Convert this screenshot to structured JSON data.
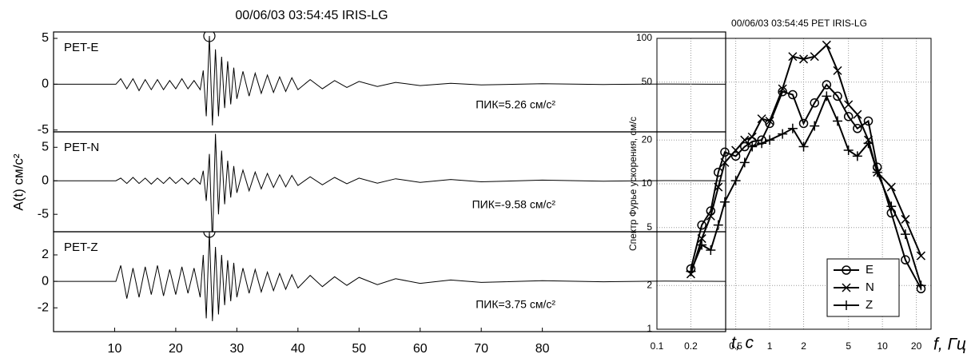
{
  "chart_data": [
    {
      "type": "seismogram",
      "title": "00/06/03 03:54:45  IRIS-LG",
      "y_label": "A(t) см/с²",
      "x_label": "t, с",
      "xlim": [
        0,
        110
      ],
      "xticks": [
        10,
        20,
        30,
        40,
        50,
        60,
        70,
        80
      ],
      "x": [
        0,
        10.2,
        11,
        12,
        13,
        14,
        15,
        16,
        17,
        18,
        19,
        20,
        21,
        22,
        23,
        24,
        24.5,
        25,
        25.5,
        26,
        26.5,
        27,
        27.5,
        28,
        28.5,
        29,
        29.5,
        30,
        31,
        32,
        33,
        34,
        35,
        36,
        37,
        38,
        39,
        40,
        42,
        44,
        46,
        48,
        50,
        53,
        56,
        60,
        65,
        70,
        80,
        90,
        100,
        110
      ],
      "series": [
        {
          "name": "PET-E",
          "color": "#000000",
          "ylim": [
            -5.2,
            5.7
          ],
          "yticks": [
            -5,
            0,
            5
          ],
          "peak": 5.26,
          "peak_x": 25.5,
          "peak_label": "ПИК=5.26 см/с²",
          "values": [
            0,
            0,
            0.6,
            -0.5,
            0.6,
            -0.7,
            0.5,
            -0.6,
            0.5,
            -0.6,
            0.4,
            -0.5,
            0.6,
            -0.5,
            0.4,
            -0.6,
            1.5,
            -3.5,
            5.26,
            -4.5,
            3.8,
            -3.5,
            3.0,
            -2.6,
            2.5,
            -2.2,
            1.8,
            -1.6,
            1.4,
            -1.3,
            1.2,
            -1.0,
            1.0,
            -0.9,
            0.8,
            -0.8,
            0.7,
            -0.6,
            0.5,
            -0.5,
            0.4,
            -0.35,
            0.3,
            -0.25,
            0.2,
            -0.15,
            0.1,
            -0.08,
            0.05,
            -0.03,
            0.02,
            0
          ]
        },
        {
          "name": "PET-N",
          "color": "#000000",
          "ylim": [
            -7.6,
            7.3
          ],
          "yticks": [
            -5,
            0,
            5
          ],
          "peak": -9.58,
          "peak_x": 26,
          "peak_label": "ПИК=-9.58 см/с²",
          "values": [
            0,
            0,
            0.4,
            -0.4,
            0.5,
            -0.4,
            0.4,
            -0.5,
            0.4,
            -0.4,
            0.5,
            -0.4,
            0.4,
            -0.5,
            0.4,
            -0.5,
            1.5,
            -3,
            4,
            -9.58,
            7,
            -5,
            4.5,
            -3.5,
            3,
            -2.5,
            2.2,
            -1.8,
            1.6,
            -1.5,
            1.3,
            -1.2,
            1.1,
            -1.0,
            0.9,
            -0.9,
            0.8,
            -0.7,
            0.6,
            -0.6,
            0.5,
            -0.45,
            0.4,
            -0.35,
            0.3,
            -0.25,
            0.2,
            -0.15,
            0.1,
            -0.05,
            0.03,
            0
          ]
        },
        {
          "name": "PET-Z",
          "color": "#000000",
          "ylim": [
            -3.8,
            3.75
          ],
          "yticks": [
            -2,
            0,
            2
          ],
          "peak": 3.75,
          "peak_x": 25.5,
          "peak_label": "ПИК=3.75 см/с²",
          "values": [
            0,
            0,
            1.2,
            -1.3,
            1.0,
            -1.2,
            1.1,
            -1.0,
            1.2,
            -1.1,
            0.9,
            -1.0,
            1.1,
            -0.9,
            1.0,
            -1.2,
            2.0,
            -2.8,
            3.75,
            -3.0,
            2.6,
            -2.5,
            2.0,
            -1.8,
            1.6,
            -1.5,
            1.4,
            -1.2,
            1.0,
            -0.9,
            0.9,
            -0.8,
            0.7,
            -0.7,
            0.6,
            -0.6,
            0.5,
            -0.5,
            0.45,
            -0.4,
            0.35,
            -0.3,
            0.3,
            -0.25,
            0.2,
            -0.15,
            0.1,
            -0.08,
            0.05,
            -0.03,
            0.02,
            0
          ]
        }
      ]
    },
    {
      "type": "spectrum",
      "title": "00/06/03 03:54:45  PET  IRIS-LG",
      "y_label": "Спектр Фурье ускорения, см/с",
      "x_label": "f, Гц",
      "log_x": true,
      "log_y": true,
      "grid": true,
      "legend": "lower right",
      "xlim": [
        0.1,
        27
      ],
      "xticks": [
        0.1,
        0.2,
        0.5,
        1,
        2,
        5,
        10,
        20
      ],
      "ylim": [
        1,
        100
      ],
      "yticks": [
        1,
        2,
        5,
        10,
        20,
        50,
        100
      ],
      "x": [
        0.2,
        0.25,
        0.3,
        0.35,
        0.4,
        0.5,
        0.6,
        0.7,
        0.85,
        1.0,
        1.3,
        1.6,
        2.0,
        2.5,
        3.2,
        4.0,
        5.0,
        6.0,
        7.5,
        9.0,
        12,
        16,
        22
      ],
      "series": [
        {
          "name": "E",
          "marker": "circle",
          "color": "#000000",
          "values": [
            2.6,
            5.2,
            6.5,
            12,
            16.5,
            15.5,
            18,
            19.5,
            20,
            26,
            43,
            41,
            26,
            36,
            48,
            40,
            29,
            24,
            27,
            13,
            6.3,
            3.0,
            1.9
          ]
        },
        {
          "name": "N",
          "marker": "x",
          "color": "#000000",
          "values": [
            2.4,
            4.2,
            6.0,
            9.5,
            14,
            17,
            20,
            21,
            28,
            27,
            45,
            75,
            72,
            75,
            90,
            60,
            35,
            30,
            20,
            12,
            9.5,
            5.7,
            3.2
          ]
        },
        {
          "name": "Z",
          "marker": "plus",
          "color": "#000000",
          "values": [
            2.5,
            3.8,
            3.5,
            5.2,
            7.5,
            10.5,
            14,
            18,
            19,
            20,
            22,
            24,
            18,
            25,
            40,
            27,
            17,
            15.5,
            19,
            12,
            7,
            4.5,
            2.0
          ]
        }
      ]
    }
  ]
}
